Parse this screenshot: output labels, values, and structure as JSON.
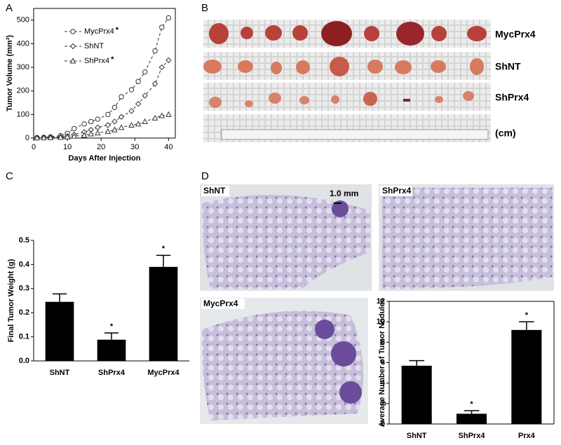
{
  "panel_labels": [
    "A",
    "B",
    "C",
    "D"
  ],
  "photo_labels": {
    "B": [
      "MycPrx4",
      "ShNT",
      "ShPrx4",
      "(cm)"
    ],
    "D": [
      "ShNT",
      "ShPrx4",
      "MycPrx4"
    ],
    "scale_bar": "1.0 mm"
  },
  "chart_data": [
    {
      "type": "line",
      "x_label": "Days After Injection",
      "y_label": "Tumor Volume (mm³)",
      "x": [
        1,
        3,
        5,
        8,
        10,
        12,
        15,
        17,
        19,
        22,
        24,
        26,
        29,
        31,
        33,
        36,
        38,
        40
      ],
      "series": [
        {
          "name": "MycPrx4",
          "note": "*",
          "color": "#333333",
          "marker": "circle",
          "values": [
            2,
            3,
            5,
            10,
            20,
            40,
            60,
            70,
            80,
            100,
            130,
            175,
            205,
            240,
            280,
            370,
            470,
            510
          ]
        },
        {
          "name": "ShNT",
          "color": "#333333",
          "marker": "diamond",
          "values": [
            1,
            2,
            3,
            5,
            8,
            15,
            25,
            35,
            45,
            55,
            70,
            90,
            115,
            145,
            180,
            230,
            300,
            330
          ]
        },
        {
          "name": "ShPrx4",
          "note": "*",
          "color": "#333333",
          "marker": "triangle",
          "values": [
            1,
            1,
            2,
            3,
            5,
            8,
            12,
            18,
            22,
            28,
            35,
            45,
            55,
            60,
            70,
            85,
            95,
            100
          ]
        }
      ],
      "xlim": [
        0,
        42
      ],
      "ylim": [
        0,
        550
      ],
      "xticks": [
        0,
        10,
        20,
        30,
        40
      ],
      "yticks": [
        0,
        100,
        200,
        300,
        400,
        500
      ],
      "legend": "upper left",
      "box": true
    },
    {
      "type": "bar",
      "y_label": "Final Tumor Weight (g)",
      "categories": [
        "ShNT",
        "ShPrx4",
        "MycPrx4"
      ],
      "values": [
        0.245,
        0.088,
        0.39
      ],
      "errors": [
        0.033,
        0.028,
        0.048
      ],
      "color": "#000000",
      "annotations": [
        {
          "category": "ShPrx4",
          "text": "*"
        },
        {
          "category": "MycPrx4",
          "text": "*"
        }
      ],
      "ylim": [
        0,
        0.5
      ],
      "yticks": [
        {
          "value": 0,
          "label": "0.0"
        },
        {
          "value": 0.1,
          "label": "0.1"
        },
        {
          "value": 0.2,
          "label": "0.2"
        },
        {
          "value": 0.3,
          "label": "0.3"
        },
        {
          "value": 0.4,
          "label": "0.4"
        },
        {
          "value": 0.5,
          "label": "0.5"
        }
      ],
      "box": false
    },
    {
      "type": "bar",
      "y_label": "Average Number of Tumor Nodules",
      "categories": [
        "ShNT",
        "ShPrx4",
        "Prx4"
      ],
      "values": [
        5.7,
        1.0,
        9.2
      ],
      "errors": [
        0.5,
        0.3,
        0.8
      ],
      "color": "#000000",
      "annotations": [
        {
          "category": "ShPrx4",
          "text": "*"
        },
        {
          "category": "Prx4",
          "text": "*"
        }
      ],
      "ylim": [
        0,
        12
      ],
      "yticks": [
        0,
        2,
        4,
        6,
        8,
        10,
        12
      ],
      "box": true
    }
  ]
}
